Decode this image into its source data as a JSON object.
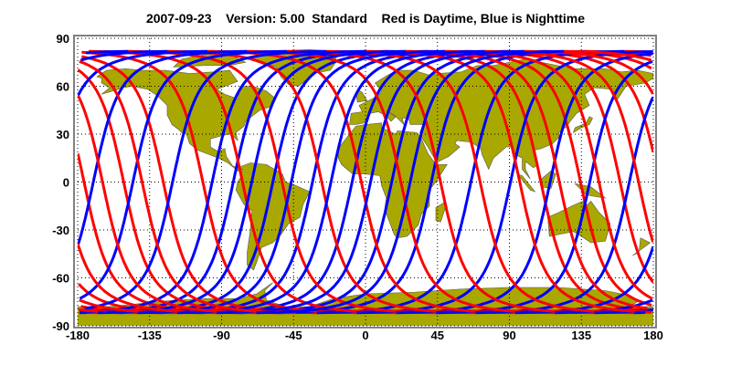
{
  "title": {
    "date": "2007-09-23",
    "version": "Version: 5.00",
    "product": "Standard",
    "legend": "Red is Daytime, Blue is Nighttime"
  },
  "colors": {
    "daytime": "#ff0000",
    "nighttime": "#0000ff",
    "land": "#a8a800",
    "frame": "#808080",
    "grid": "#000000"
  },
  "axes": {
    "xlim": [
      -180,
      180
    ],
    "ylim": [
      -90,
      90
    ],
    "x_ticks": [
      "-180",
      "-135",
      "-90",
      "-45",
      "0",
      "45",
      "90",
      "135",
      "180"
    ],
    "y_ticks": [
      "90",
      "60",
      "30",
      "0",
      "-30",
      "-60",
      "-90"
    ],
    "grid": "dotted"
  }
}
